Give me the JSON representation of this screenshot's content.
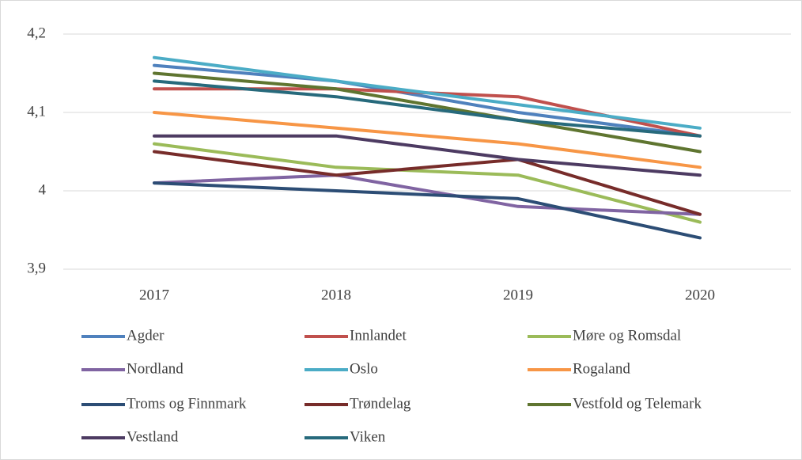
{
  "chart_data": {
    "type": "line",
    "categories": [
      "2017",
      "2018",
      "2019",
      "2020"
    ],
    "series": [
      {
        "name": "Agder",
        "color": "#4f81bd",
        "values": [
          4.16,
          4.14,
          4.1,
          4.07
        ]
      },
      {
        "name": "Innlandet",
        "color": "#c0504d",
        "values": [
          4.13,
          4.13,
          4.12,
          4.07
        ]
      },
      {
        "name": "Møre og Romsdal",
        "color": "#9bbb59",
        "values": [
          4.06,
          4.03,
          4.02,
          3.96
        ]
      },
      {
        "name": "Nordland",
        "color": "#8064a2",
        "values": [
          4.01,
          4.02,
          3.98,
          3.97
        ]
      },
      {
        "name": "Oslo",
        "color": "#4bacc6",
        "values": [
          4.17,
          4.14,
          4.11,
          4.08
        ]
      },
      {
        "name": "Rogaland",
        "color": "#f79646",
        "values": [
          4.1,
          4.08,
          4.06,
          4.03
        ]
      },
      {
        "name": "Troms og Finnmark",
        "color": "#2c4d75",
        "values": [
          4.01,
          4.0,
          3.99,
          3.94
        ]
      },
      {
        "name": "Trøndelag",
        "color": "#772c2a",
        "values": [
          4.05,
          4.02,
          4.04,
          3.97
        ]
      },
      {
        "name": "Vestfold og Telemark",
        "color": "#5f7530",
        "values": [
          4.15,
          4.13,
          4.09,
          4.05
        ]
      },
      {
        "name": "Vestland",
        "color": "#4d3b62",
        "values": [
          4.07,
          4.07,
          4.04,
          4.02
        ]
      },
      {
        "name": "Viken",
        "color": "#276a7c",
        "values": [
          4.14,
          4.12,
          4.09,
          4.07
        ]
      }
    ],
    "ylim": [
      3.9,
      4.2
    ],
    "yticks": [
      {
        "value": 3.9,
        "label": "3,9"
      },
      4,
      {
        "value": 4.1,
        "label": "4,1"
      },
      {
        "value": 4.2,
        "label": "4,2"
      }
    ],
    "grid": true,
    "legend": "bottom"
  }
}
